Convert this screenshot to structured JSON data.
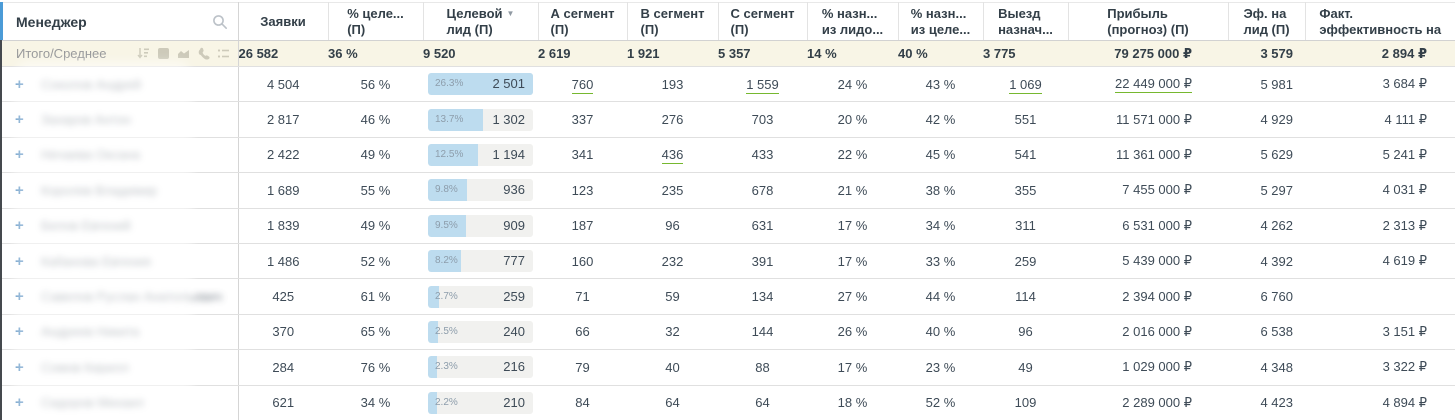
{
  "header": {
    "manager_label": "Менеджер",
    "columns": [
      {
        "line1": "Заявки",
        "line2": ""
      },
      {
        "line1": "% целе...",
        "line2": "(П)"
      },
      {
        "line1": "Целевой",
        "line2": "лид (П)",
        "sorted": "desc"
      },
      {
        "line1": "А сегмент",
        "line2": "(П)"
      },
      {
        "line1": "В сегмент",
        "line2": "(П)"
      },
      {
        "line1": "С сегмент",
        "line2": "(П)"
      },
      {
        "line1": "% назн...",
        "line2": "из лидо..."
      },
      {
        "line1": "% назн...",
        "line2": "из целе..."
      },
      {
        "line1": "Выезд",
        "line2": "назнач..."
      },
      {
        "line1": "Прибыль",
        "line2": "(прогноз) (П)"
      },
      {
        "line1": "Эф. на",
        "line2": "лид (П)"
      },
      {
        "line1": "Факт.",
        "line2": "эффективность на"
      }
    ]
  },
  "totals": {
    "label": "Итого/Среднее",
    "values": [
      "26 582",
      "36 %",
      "9 520",
      "2 619",
      "1 921",
      "5 357",
      "14 %",
      "40 %",
      "3 775",
      "79 275 000 ₽",
      "3 579",
      "2 894 ₽"
    ]
  },
  "manager_names_blurred": true,
  "rows": [
    {
      "name": "Соколов Андрей",
      "values": [
        "4 504",
        "56 %",
        {
          "label": "26.3%",
          "value": "2 501",
          "fill": 100
        },
        "760",
        "193",
        "1 559",
        "24 %",
        "43 %",
        "1 069",
        "22 449 000 ₽",
        "5 981",
        "3 684 ₽"
      ],
      "links": [
        2,
        3,
        5,
        8,
        9
      ]
    },
    {
      "name": "Захаров Антон",
      "values": [
        "2 817",
        "46 %",
        {
          "label": "13.7%",
          "value": "1 302",
          "fill": 52
        },
        "337",
        "276",
        "703",
        "20 %",
        "42 %",
        "551",
        "11 571 000 ₽",
        "4 929",
        "4 111 ₽"
      ],
      "links": []
    },
    {
      "name": "Нечаева Оксана",
      "values": [
        "2 422",
        "49 %",
        {
          "label": "12.5%",
          "value": "1 194",
          "fill": 48
        },
        "341",
        "436",
        "433",
        "22 %",
        "45 %",
        "541",
        "11 361 000 ₽",
        "5 629",
        "5 241 ₽"
      ],
      "links": [
        4
      ]
    },
    {
      "name": "Королев Владимир",
      "values": [
        "1 689",
        "55 %",
        {
          "label": "9.8%",
          "value": "936",
          "fill": 37
        },
        "123",
        "235",
        "678",
        "21 %",
        "38 %",
        "355",
        "7 455 000 ₽",
        "5 297",
        "4 031 ₽"
      ],
      "links": []
    },
    {
      "name": "Белов Евгений",
      "values": [
        "1 839",
        "49 %",
        {
          "label": "9.5%",
          "value": "909",
          "fill": 36
        },
        "187",
        "96",
        "631",
        "17 %",
        "34 %",
        "311",
        "6 531 000 ₽",
        "4 262",
        "2 313 ₽"
      ],
      "links": []
    },
    {
      "name": "Кабанова Евгения",
      "values": [
        "1 486",
        "52 %",
        {
          "label": "8.2%",
          "value": "777",
          "fill": 31
        },
        "160",
        "232",
        "391",
        "17 %",
        "33 %",
        "259",
        "5 439 000 ₽",
        "4 392",
        "4 619 ₽"
      ],
      "links": []
    },
    {
      "name": "Савелов Руслан Анатольевич",
      "values": [
        "425",
        "61 %",
        {
          "label": "2.7%",
          "value": "259",
          "fill": 10
        },
        "71",
        "59",
        "134",
        "27 %",
        "44 %",
        "114",
        "2 394 000 ₽",
        "6 760",
        ""
      ],
      "links": []
    },
    {
      "name": "Андреев Никита",
      "values": [
        "370",
        "65 %",
        {
          "label": "2.5%",
          "value": "240",
          "fill": 9.5
        },
        "66",
        "32",
        "144",
        "26 %",
        "40 %",
        "96",
        "2 016 000 ₽",
        "6 538",
        "3 151 ₽"
      ],
      "links": []
    },
    {
      "name": "Сомов Кирилл",
      "values": [
        "284",
        "76 %",
        {
          "label": "2.3%",
          "value": "216",
          "fill": 8.7
        },
        "79",
        "40",
        "88",
        "17 %",
        "23 %",
        "49",
        "1 029 000 ₽",
        "4 348",
        "3 322 ₽"
      ],
      "links": []
    },
    {
      "name": "Сидоров Михаил",
      "values": [
        "621",
        "34 %",
        {
          "label": "2.2%",
          "value": "210",
          "fill": 8.4
        },
        "84",
        "64",
        "64",
        "18 %",
        "52 %",
        "109",
        "2 289 000 ₽",
        "4 423",
        "4 894 ₽"
      ],
      "links": []
    }
  ],
  "icons": {
    "search": "magnifier glyph in manager header",
    "sort_desc_arrow": "▼ on sorted column 'Целевой лид (П)'",
    "totals_toolbar": [
      "sort-amount-icon",
      "square-icon",
      "area-chart-icon",
      "phone-icon",
      "list-icon"
    ],
    "row_expander": "+"
  },
  "colors": {
    "totals_bg": "#f8f5e6",
    "bar_fill_blue": "#bddcef",
    "bar_track": "#f1f1ef",
    "link_underline_green": "#76b82f",
    "plus_blue": "#3679b5",
    "edge_blue": "#4b9bd7",
    "text_dark": "#333f48"
  }
}
